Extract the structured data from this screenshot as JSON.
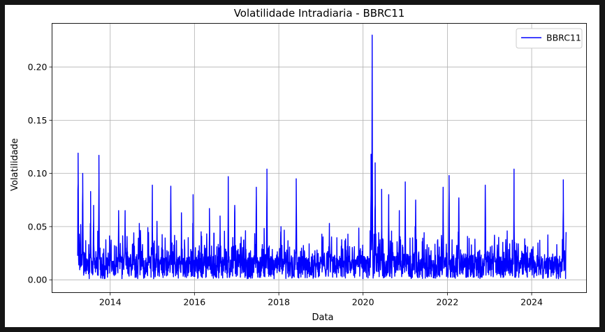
{
  "chart_data": {
    "type": "line",
    "title": "Volatilidade Intradiaria - BBRC11",
    "xlabel": "Data",
    "ylabel": "Volatilidade",
    "grid": true,
    "legend": {
      "placement": "top-right",
      "entries": [
        "BBRC11"
      ]
    },
    "xlim": [
      "2012-08-15",
      "2025-04-20"
    ],
    "ylim": [
      -0.012,
      0.241
    ],
    "x_ticks": [
      "2014",
      "2016",
      "2018",
      "2020",
      "2022",
      "2024"
    ],
    "y_ticks": [
      "0.00",
      "0.05",
      "0.10",
      "0.15",
      "0.20"
    ],
    "series": [
      {
        "name": "BBRC11",
        "color": "#0000ff",
        "data_start": "2013-03-25",
        "data_end": "2024-10-25",
        "baseline_typical": 0.012,
        "noise_amplitude": 0.02,
        "spikes": [
          {
            "date": "2013-03-29",
            "value": 0.119
          },
          {
            "date": "2013-04-20",
            "value": 0.052
          },
          {
            "date": "2013-05-08",
            "value": 0.1
          },
          {
            "date": "2013-07-15",
            "value": 0.083
          },
          {
            "date": "2013-08-10",
            "value": 0.07
          },
          {
            "date": "2013-09-25",
            "value": 0.117
          },
          {
            "date": "2014-03-15",
            "value": 0.065
          },
          {
            "date": "2014-05-10",
            "value": 0.065
          },
          {
            "date": "2014-09-10",
            "value": 0.053
          },
          {
            "date": "2015-01-01",
            "value": 0.089
          },
          {
            "date": "2015-02-10",
            "value": 0.055
          },
          {
            "date": "2015-06-10",
            "value": 0.088
          },
          {
            "date": "2015-09-10",
            "value": 0.063
          },
          {
            "date": "2015-12-20",
            "value": 0.08
          },
          {
            "date": "2016-05-10",
            "value": 0.067
          },
          {
            "date": "2016-08-10",
            "value": 0.06
          },
          {
            "date": "2016-10-20",
            "value": 0.097
          },
          {
            "date": "2016-12-15",
            "value": 0.07
          },
          {
            "date": "2017-06-20",
            "value": 0.087
          },
          {
            "date": "2017-09-20",
            "value": 0.104
          },
          {
            "date": "2018-01-20",
            "value": 0.05
          },
          {
            "date": "2018-06-01",
            "value": 0.095
          },
          {
            "date": "2019-03-15",
            "value": 0.053
          },
          {
            "date": "2020-03-10",
            "value": 0.118
          },
          {
            "date": "2020-03-20",
            "value": 0.23
          },
          {
            "date": "2020-04-15",
            "value": 0.11
          },
          {
            "date": "2020-06-10",
            "value": 0.085
          },
          {
            "date": "2020-08-10",
            "value": 0.08
          },
          {
            "date": "2020-11-10",
            "value": 0.065
          },
          {
            "date": "2021-01-01",
            "value": 0.092
          },
          {
            "date": "2021-04-01",
            "value": 0.075
          },
          {
            "date": "2021-11-25",
            "value": 0.087
          },
          {
            "date": "2022-01-15",
            "value": 0.098
          },
          {
            "date": "2022-04-10",
            "value": 0.077
          },
          {
            "date": "2022-11-25",
            "value": 0.089
          },
          {
            "date": "2023-08-01",
            "value": 0.104
          },
          {
            "date": "2024-10-01",
            "value": 0.094
          }
        ]
      }
    ]
  }
}
